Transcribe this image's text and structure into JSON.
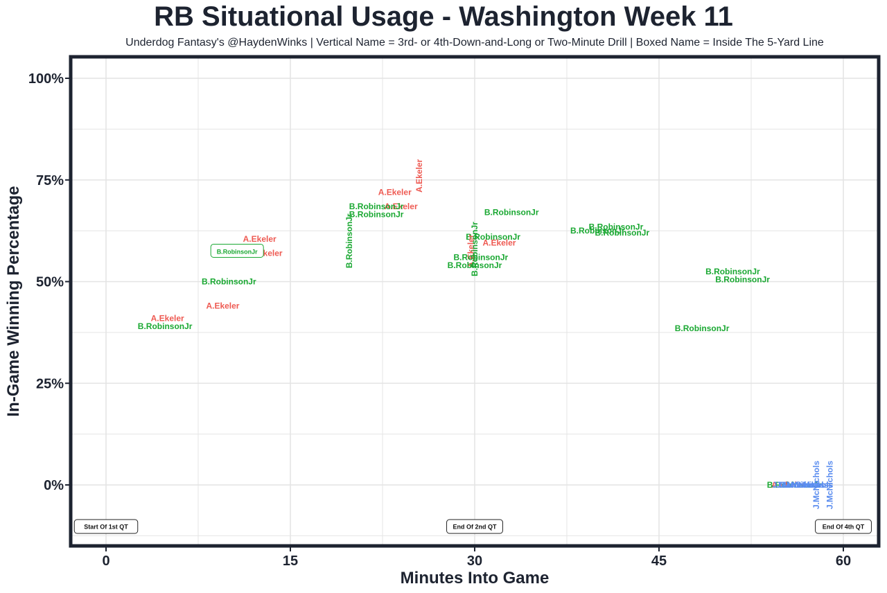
{
  "title": "RB Situational Usage - Washington Week 11",
  "subtitle": "Underdog Fantasy's @HaydenWinks | Vertical Name = 3rd- or 4th-Down-and-Long or Two-Minute Drill | Boxed Name = Inside The 5-Yard Line",
  "colors": {
    "A.Ekeler": "#ee5a52",
    "B.RobinsonJr": "#1aa832",
    "J.McNichols": "#5b8def",
    "frame": "#1d2330",
    "grid": "#e4e4e4"
  },
  "chart_data": {
    "type": "scatter",
    "xlabel": "Minutes Into Game",
    "ylabel": "In-Game Winning Percentage",
    "xlim": [
      -2.8,
      63
    ],
    "ylim": [
      -15,
      105
    ],
    "x_ticks": [
      0,
      15,
      30,
      45,
      60
    ],
    "x_tick_labels": [
      "0",
      "15",
      "30",
      "45",
      "60"
    ],
    "y_ticks": [
      0,
      25,
      50,
      75,
      100
    ],
    "y_tick_labels": [
      "0%",
      "25%",
      "50%",
      "75%",
      "100%"
    ],
    "grid": true,
    "series": [
      {
        "name": "A.Ekeler"
      },
      {
        "name": "B.RobinsonJr"
      },
      {
        "name": "J.McNichols"
      }
    ],
    "points": [
      {
        "player": "A.Ekeler",
        "x": 5.0,
        "y": 41.0,
        "style": "normal"
      },
      {
        "player": "B.RobinsonJr",
        "x": 4.8,
        "y": 39.0,
        "style": "normal"
      },
      {
        "player": "A.Ekeler",
        "x": 9.5,
        "y": 44.0,
        "style": "normal"
      },
      {
        "player": "B.RobinsonJr",
        "x": 10.0,
        "y": 50.0,
        "style": "normal"
      },
      {
        "player": "A.Ekeler",
        "x": 12.5,
        "y": 60.5,
        "style": "normal"
      },
      {
        "player": "A.Ekeler",
        "x": 13.0,
        "y": 57.0,
        "style": "normal"
      },
      {
        "player": "B.RobinsonJr",
        "x": 10.5,
        "y": 57.5,
        "style": "boxed"
      },
      {
        "player": "B.RobinsonJr",
        "x": 19.8,
        "y": 60.0,
        "style": "vertical"
      },
      {
        "player": "A.Ekeler",
        "x": 23.5,
        "y": 72.0,
        "style": "normal"
      },
      {
        "player": "A.Ekeler",
        "x": 25.5,
        "y": 76.0,
        "style": "vertical"
      },
      {
        "player": "A.Ekeler",
        "x": 24.0,
        "y": 68.5,
        "style": "normal"
      },
      {
        "player": "B.RobinsonJr",
        "x": 22.0,
        "y": 68.5,
        "style": "normal"
      },
      {
        "player": "B.RobinsonJr",
        "x": 22.0,
        "y": 66.5,
        "style": "normal"
      },
      {
        "player": "B.RobinsonJr",
        "x": 33.0,
        "y": 67.0,
        "style": "normal"
      },
      {
        "player": "B.RobinsonJr",
        "x": 31.5,
        "y": 61.0,
        "style": "normal"
      },
      {
        "player": "A.Ekeler",
        "x": 32.0,
        "y": 59.5,
        "style": "normal"
      },
      {
        "player": "A.Ekeler",
        "x": 29.7,
        "y": 57.5,
        "style": "vertical"
      },
      {
        "player": "B.RobinsonJr",
        "x": 30.0,
        "y": 58.0,
        "style": "vertical"
      },
      {
        "player": "B.RobinsonJr",
        "x": 30.5,
        "y": 56.0,
        "style": "normal"
      },
      {
        "player": "B.RobinsonJr",
        "x": 30.0,
        "y": 54.0,
        "style": "normal"
      },
      {
        "player": "B.RobinsonJr",
        "x": 41.5,
        "y": 63.5,
        "style": "normal"
      },
      {
        "player": "B.RobinsonJr",
        "x": 40.0,
        "y": 62.5,
        "style": "normal"
      },
      {
        "player": "B.RobinsonJr",
        "x": 42.0,
        "y": 62.0,
        "style": "normal"
      },
      {
        "player": "B.RobinsonJr",
        "x": 51.0,
        "y": 52.5,
        "style": "normal"
      },
      {
        "player": "B.RobinsonJr",
        "x": 51.8,
        "y": 50.5,
        "style": "normal"
      },
      {
        "player": "B.RobinsonJr",
        "x": 48.5,
        "y": 38.5,
        "style": "normal"
      },
      {
        "player": "A.Ekeler",
        "x": 55.5,
        "y": 0.0,
        "style": "normal"
      },
      {
        "player": "B.RobinsonJr",
        "x": 56.0,
        "y": 0.0,
        "style": "normal"
      },
      {
        "player": "J.McNichols",
        "x": 56.2,
        "y": 0.0,
        "style": "normal"
      },
      {
        "player": "J.McNichols",
        "x": 56.5,
        "y": 0.0,
        "style": "normal"
      },
      {
        "player": "J.McNichols",
        "x": 56.8,
        "y": 0.0,
        "style": "normal"
      },
      {
        "player": "J.McNichols",
        "x": 57.2,
        "y": 0.0,
        "style": "normal"
      },
      {
        "player": "J.McNichols",
        "x": 57.8,
        "y": 0.0,
        "style": "vertical"
      },
      {
        "player": "J.McNichols",
        "x": 58.9,
        "y": 0.0,
        "style": "vertical"
      }
    ],
    "quarter_markers": [
      {
        "label": "Start Of 1st QT",
        "x": 0
      },
      {
        "label": "End Of 2nd QT",
        "x": 30
      },
      {
        "label": "End Of 4th QT",
        "x": 60
      }
    ]
  }
}
